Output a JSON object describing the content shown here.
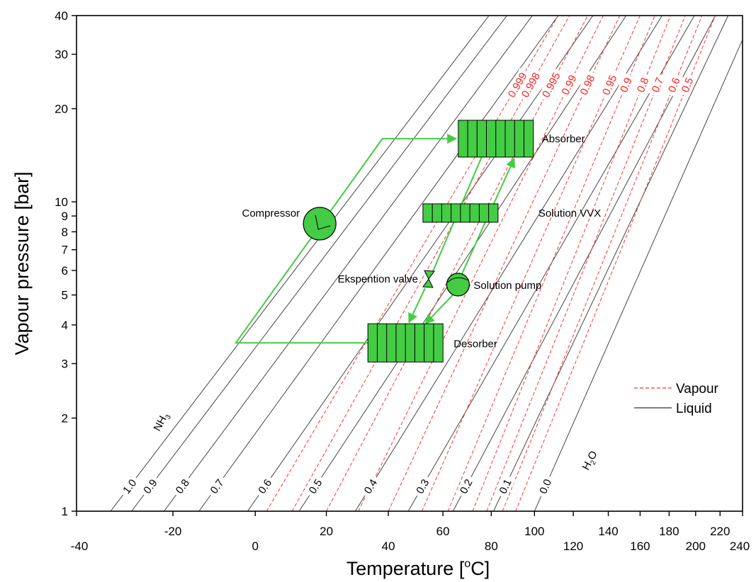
{
  "chart_data": {
    "type": "line",
    "title": "",
    "xlabel": "Temperature [",
    "xlabel_degree": "o",
    "xlabel_unit": "C]",
    "ylabel": "Vapour pressure [bar]",
    "y_scale": "log",
    "y_axis_note": "Duehring plot: x position = -1/T (reciprocal temperature scale)",
    "ylim": [
      1,
      40
    ],
    "xlim_celsius": [
      -40,
      240
    ],
    "x_ticks": [
      -40,
      -20,
      0,
      20,
      40,
      60,
      80,
      100,
      120,
      140,
      160,
      180,
      200,
      220,
      240
    ],
    "x_tick_labels": [
      "-40",
      "-20",
      "0",
      "20",
      "40",
      "60",
      "80",
      "100",
      "120",
      "140",
      "160",
      "180",
      "200",
      "220",
      "240"
    ],
    "y_ticks": [
      1,
      2,
      3,
      4,
      5,
      6,
      7,
      8,
      9,
      10,
      20,
      30,
      40
    ],
    "y_tick_labels": [
      "1",
      "2",
      "3",
      "4",
      "5",
      "6",
      "7",
      "8",
      "9",
      "10",
      "20",
      "30",
      "40"
    ],
    "legend": {
      "position": "right",
      "entries": [
        {
          "name": "Vapour",
          "style": "dashed",
          "color": "#ff3333"
        },
        {
          "name": "Liquid",
          "style": "solid",
          "color": "#333333"
        }
      ]
    },
    "liquid_series": [
      {
        "name": "1.0",
        "t_at_1bar": -33.3,
        "t_at_40bar": 79
      },
      {
        "name": "0.9",
        "t_at_1bar": -29,
        "t_at_40bar": 87
      },
      {
        "name": "0.8",
        "t_at_1bar": -22,
        "t_at_40bar": 99
      },
      {
        "name": "0.7",
        "t_at_1bar": -14,
        "t_at_40bar": 112
      },
      {
        "name": "0.6",
        "t_at_1bar": -2,
        "t_at_40bar": 131
      },
      {
        "name": "0.5",
        "t_at_1bar": 12,
        "t_at_40bar": 151
      },
      {
        "name": "0.4",
        "t_at_1bar": 29,
        "t_at_40bar": 175
      },
      {
        "name": "0.3",
        "t_at_1bar": 47,
        "t_at_40bar": 199
      },
      {
        "name": "0.2",
        "t_at_1bar": 64,
        "t_at_40bar": 216
      },
      {
        "name": "0.1",
        "t_at_1bar": 81,
        "t_at_40bar": 227
      },
      {
        "name": "0.0",
        "t_at_1bar": 100,
        "t_at_40bar": 250
      }
    ],
    "vapour_series": [
      {
        "name": "0.999",
        "t_at_1bar": 3,
        "t_at_40bar": 112
      },
      {
        "name": "0.998",
        "t_at_1bar": 10,
        "t_at_40bar": 118
      },
      {
        "name": "0.995",
        "t_at_1bar": 20,
        "t_at_40bar": 128
      },
      {
        "name": "0.99",
        "t_at_1bar": 30,
        "t_at_40bar": 137
      },
      {
        "name": "0.98",
        "t_at_1bar": 40,
        "t_at_40bar": 147
      },
      {
        "name": "0.95",
        "t_at_1bar": 52,
        "t_at_40bar": 160
      },
      {
        "name": "0.9",
        "t_at_1bar": 62,
        "t_at_40bar": 170
      },
      {
        "name": "0.8",
        "t_at_1bar": 72,
        "t_at_40bar": 181
      },
      {
        "name": "0.7",
        "t_at_1bar": 78,
        "t_at_40bar": 192
      },
      {
        "name": "0.6",
        "t_at_1bar": 85,
        "t_at_40bar": 205
      },
      {
        "name": "0.5",
        "t_at_1bar": 91,
        "t_at_40bar": 216
      }
    ],
    "species_labels": {
      "nh3_main": "NH",
      "nh3_sub": "3",
      "h2o_main": "H",
      "h2o_sub": "2",
      "h2o_end": "O"
    },
    "cycle": {
      "color": "#44cc44",
      "components": [
        {
          "name": "Absorber",
          "label": "Absorber",
          "type": "heat-exchanger",
          "t": 82,
          "p": 16,
          "segments": 8
        },
        {
          "name": "Solution VVX",
          "label": "Solution VVX",
          "type": "heat-exchanger",
          "t": 67,
          "p": 9.2,
          "segments": 8
        },
        {
          "name": "Desorber",
          "label": "Desorber",
          "type": "heat-exchanger",
          "t": 46,
          "p": 3.5,
          "segments": 8
        },
        {
          "name": "Compressor",
          "label": "Compressor",
          "type": "compressor",
          "t": 18,
          "p": 8.5
        },
        {
          "name": "Solution pump",
          "label": "Solution pump",
          "type": "pump",
          "t": 66,
          "p": 5.4
        },
        {
          "name": "Ekspention valve",
          "label": "Ekspention valve",
          "type": "valve",
          "t": 54,
          "p": 5.6
        }
      ]
    }
  }
}
